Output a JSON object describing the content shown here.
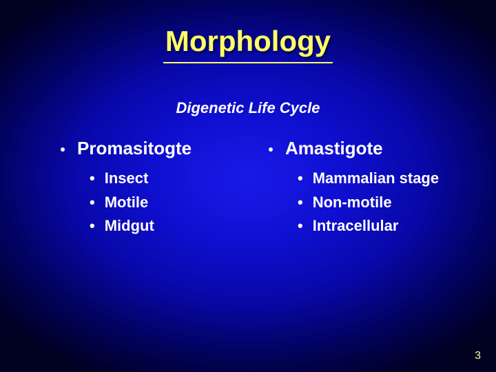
{
  "title": "Morphology",
  "subtitle": "Digenetic Life Cycle",
  "columns": [
    {
      "heading": "Promasitogte",
      "items": [
        "Insect",
        "Motile",
        "Midgut"
      ]
    },
    {
      "heading": "Amastigote",
      "items": [
        "Mammalian stage",
        "Non-motile",
        "Intracellular"
      ]
    }
  ],
  "pageNumber": "3",
  "style": {
    "title_color": "#ffff66",
    "text_color": "#ffffff",
    "pagenum_color": "#ffff99",
    "title_fontsize": 42,
    "subtitle_fontsize": 22,
    "heading_fontsize": 26,
    "item_fontsize": 22,
    "bg_gradient_center": "#1a1ae8",
    "bg_gradient_edge": "#000020"
  }
}
